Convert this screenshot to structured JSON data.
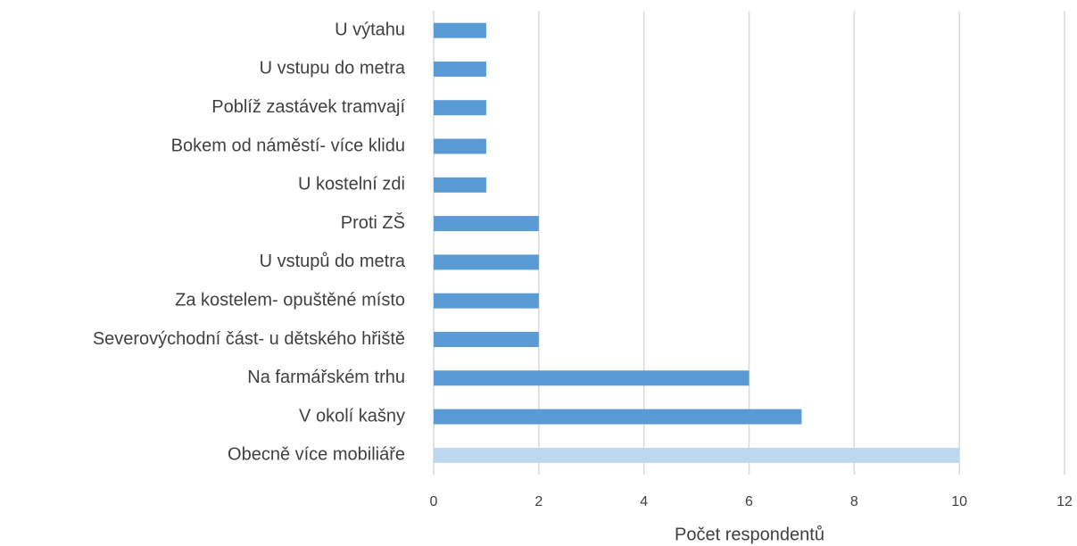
{
  "chart_data": {
    "type": "bar",
    "orientation": "horizontal",
    "x_label": "Počet respondentů",
    "categories": [
      "U výtahu",
      "U vstupu do metra",
      "Poblíž zastávek tramvají",
      "Bokem od náměstí- více klidu",
      "U kostelní zdi",
      "Proti ZŠ",
      "U vstupů do metra",
      "Za kostelem- opuštěné místo",
      "Severovýchodní část- u dětského hřiště",
      "Na farmářském trhu",
      "V okolí kašny",
      "Obecně více mobiliáře"
    ],
    "values": [
      1,
      1,
      1,
      1,
      1,
      2,
      2,
      2,
      2,
      6,
      7,
      10
    ],
    "colors": [
      "#5b9bd5",
      "#5b9bd5",
      "#5b9bd5",
      "#5b9bd5",
      "#5b9bd5",
      "#5b9bd5",
      "#5b9bd5",
      "#5b9bd5",
      "#5b9bd5",
      "#5b9bd5",
      "#5b9bd5",
      "#bdd7ee"
    ],
    "xlim": [
      0,
      12
    ],
    "xticks": [
      0,
      2,
      4,
      6,
      8,
      10,
      12
    ],
    "grid": true
  }
}
